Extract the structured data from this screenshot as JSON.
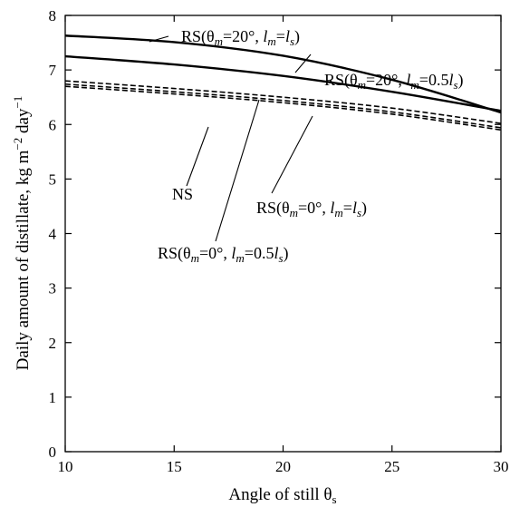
{
  "chart_data": {
    "type": "line",
    "xlabel": "Angle of still θ",
    "xlabel_sub": "s",
    "ylabel": "Daily amount of distillate, kg m",
    "ylabel_exp1": "−2",
    "ylabel_mid": " day",
    "ylabel_exp2": "−1",
    "xlim": [
      10,
      30
    ],
    "ylim": [
      0,
      8
    ],
    "x_ticks": [
      "10",
      "15",
      "20",
      "25",
      "30"
    ],
    "y_ticks": [
      "0",
      "1",
      "2",
      "3",
      "4",
      "5",
      "6",
      "7",
      "8"
    ],
    "grid": false,
    "x": [
      10,
      15,
      20,
      25,
      30
    ],
    "series": [
      {
        "name": "RS(θm=20°, lm=ls)",
        "style": "solid",
        "values": [
          7.63,
          7.51,
          7.26,
          6.82,
          6.22
        ]
      },
      {
        "name": "RS(θm=20°, lm=0.5ls)",
        "style": "solid",
        "values": [
          7.25,
          7.1,
          6.89,
          6.6,
          6.25
        ]
      },
      {
        "name": "RS(θm=0°, lm=0.5ls)",
        "style": "dashed",
        "values": [
          6.8,
          6.66,
          6.5,
          6.3,
          6.02
        ]
      },
      {
        "name": "RS(θm=0°, lm=ls)",
        "style": "dashed",
        "values": [
          6.74,
          6.6,
          6.44,
          6.23,
          5.94
        ]
      },
      {
        "name": "NS",
        "style": "dashed",
        "values": [
          6.7,
          6.56,
          6.4,
          6.19,
          5.9
        ]
      }
    ],
    "annotations": [
      {
        "id": "rs20-ls",
        "parts": [
          "RS(θ",
          "m",
          "=20°, ",
          "l",
          "m",
          "=",
          "l",
          "s",
          ")"
        ]
      },
      {
        "id": "rs20-half",
        "parts": [
          "RS(θ",
          "m",
          "=20°, ",
          "l",
          "m",
          "=0.5",
          "l",
          "s",
          ")"
        ]
      },
      {
        "id": "ns",
        "parts": [
          "NS"
        ]
      },
      {
        "id": "rs0-ls",
        "parts": [
          "RS(θ",
          "m",
          "=0°, ",
          "l",
          "m",
          "=",
          "l",
          "s",
          ")"
        ]
      },
      {
        "id": "rs0-half",
        "parts": [
          "RS(θ",
          "m",
          "=0°, ",
          "l",
          "m",
          "=0.5",
          "l",
          "s",
          ")"
        ]
      }
    ]
  }
}
